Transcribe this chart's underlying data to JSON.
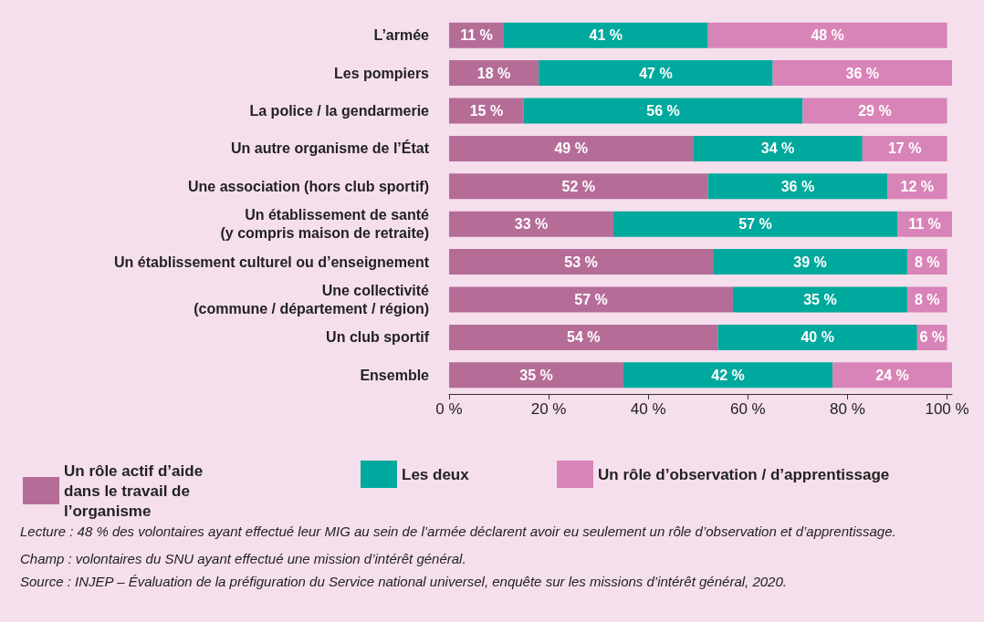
{
  "chart_data": {
    "type": "bar",
    "orientation": "horizontal",
    "stacked": true,
    "categories": [
      "L’armée",
      "Les pompiers",
      "La police / la gendarmerie",
      "Un autre organisme de l’État",
      "Une association (hors club sportif)",
      "Un établissement de santé\n(y compris maison de retraite)",
      "Un établissement culturel ou d’enseignement",
      "Une collectivité\n(commune / département / région)",
      "Un club sportif",
      "Ensemble"
    ],
    "series": [
      {
        "name": "Un rôle actif d’aide dans le travail de l’organisme",
        "color": "#b56d98",
        "values": [
          11,
          18,
          15,
          49,
          52,
          33,
          53,
          57,
          54,
          35
        ],
        "value_labels": [
          "11 %",
          "18 %",
          "15 %",
          "49 %",
          "52 %",
          "33 %",
          "53 %",
          "57 %",
          "54 %",
          "35 %"
        ]
      },
      {
        "name": "Les deux",
        "color": "#00a99d",
        "values": [
          41,
          47,
          56,
          34,
          36,
          57,
          39,
          35,
          40,
          42
        ],
        "value_labels": [
          "41 %",
          "47 %",
          "56 %",
          "34 %",
          "36 %",
          "57 %",
          "39 %",
          "35 %",
          "40 %",
          "42 %"
        ]
      },
      {
        "name": "Un rôle d’observation / d’apprentissage",
        "color": "#d984b8",
        "values": [
          48,
          36,
          29,
          17,
          12,
          11,
          8,
          8,
          6,
          24
        ],
        "value_labels": [
          "48 %",
          "36 %",
          "29 %",
          "17 %",
          "12 %",
          "11 %",
          "8 %",
          "8 %",
          "6 %",
          "24 %"
        ]
      }
    ],
    "xlim": [
      0,
      101
    ],
    "xticks": [
      {
        "value": 0,
        "label": "0 %"
      },
      {
        "value": 20,
        "label": "20 %"
      },
      {
        "value": 40,
        "label": "40 %"
      },
      {
        "value": 60,
        "label": "60 %"
      },
      {
        "value": 80,
        "label": "80 %"
      },
      {
        "value": 100,
        "label": "100 %"
      }
    ],
    "grid": false,
    "legend": "bottom",
    "annotations": [
      "Lecture : 48 % des volontaires ayant effectué leur MIG au sein de l’armée déclarent avoir eu seulement un rôle d’observation et d’apprentissage.",
      "Champ : volontaires du SNU ayant effectué une mission d’intérêt général.",
      "Source : INJEP – Évaluation de la préfiguration du Service national universel, enquête sur les missions d’intérêt général, 2020."
    ]
  }
}
